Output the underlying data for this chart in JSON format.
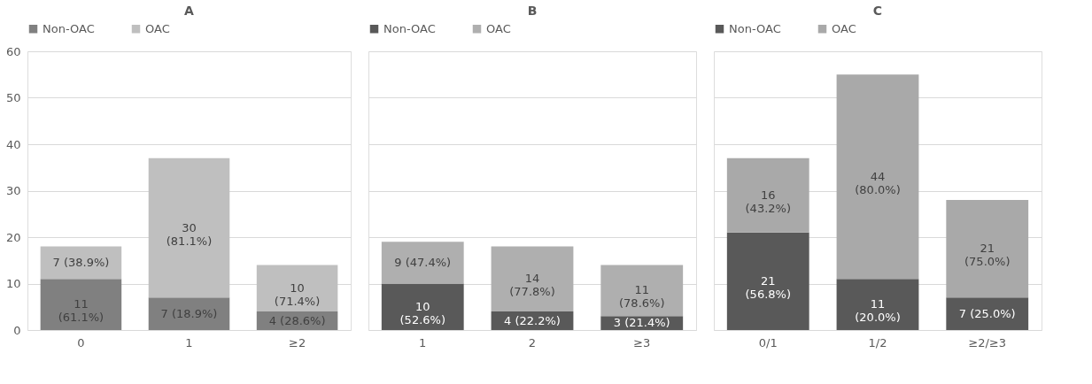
{
  "chart_data": [
    {
      "type": "bar",
      "title": "A",
      "categories": [
        "0",
        "1",
        "≥2"
      ],
      "stacked": true,
      "legend": "top",
      "grid": "y",
      "ylim": [
        0,
        60
      ],
      "yticks": [
        0,
        10,
        20,
        30,
        40,
        50,
        60
      ],
      "series": [
        {
          "name": "Non-OAC",
          "color": "#808080",
          "values": [
            11,
            7,
            4
          ],
          "value_labels": [
            "11\n(61.1%)",
            "7 (18.9%)",
            "4 (28.6%)"
          ]
        },
        {
          "name": "OAC",
          "color": "#bfbfbf",
          "values": [
            7,
            30,
            10
          ],
          "value_labels": [
            "7 (38.9%)",
            "30\n(81.1%)",
            "10\n(71.4%)"
          ]
        }
      ]
    },
    {
      "type": "bar",
      "title": "B",
      "categories": [
        "1",
        "2",
        "≥3"
      ],
      "stacked": true,
      "legend": "top",
      "grid": "y",
      "ylim": [
        0,
        60
      ],
      "yticks": [
        0,
        10,
        20,
        30,
        40,
        50,
        60
      ],
      "tick_labels": "x",
      "series": [
        {
          "name": "Non-OAC",
          "color": "#595959",
          "values": [
            10,
            4,
            3
          ],
          "value_labels": [
            "10\n(52.6%)",
            "4 (22.2%)",
            "3 (21.4%)"
          ]
        },
        {
          "name": "OAC",
          "color": "#afafaf",
          "values": [
            9,
            14,
            11
          ],
          "value_labels": [
            "9 (47.4%)",
            "14\n(77.8%)",
            "11\n(78.6%)"
          ]
        }
      ]
    },
    {
      "type": "bar",
      "title": "C",
      "categories": [
        "0/1",
        "1/2",
        "≥2/≥3"
      ],
      "stacked": true,
      "legend": "top",
      "grid": "y",
      "ylim": [
        0,
        60
      ],
      "yticks": [
        0,
        10,
        20,
        30,
        40,
        50,
        60
      ],
      "tick_labels": "x",
      "series": [
        {
          "name": "Non-OAC",
          "color": "#595959",
          "values": [
            21,
            11,
            7
          ],
          "value_labels": [
            "21\n(56.8%)",
            "11\n(20.0%)",
            "7 (25.0%)"
          ]
        },
        {
          "name": "OAC",
          "color": "#a9a9a9",
          "values": [
            16,
            44,
            21
          ],
          "value_labels": [
            "16\n(43.2%)",
            "44\n(80.0%)",
            "21\n(75.0%)"
          ]
        }
      ]
    }
  ]
}
